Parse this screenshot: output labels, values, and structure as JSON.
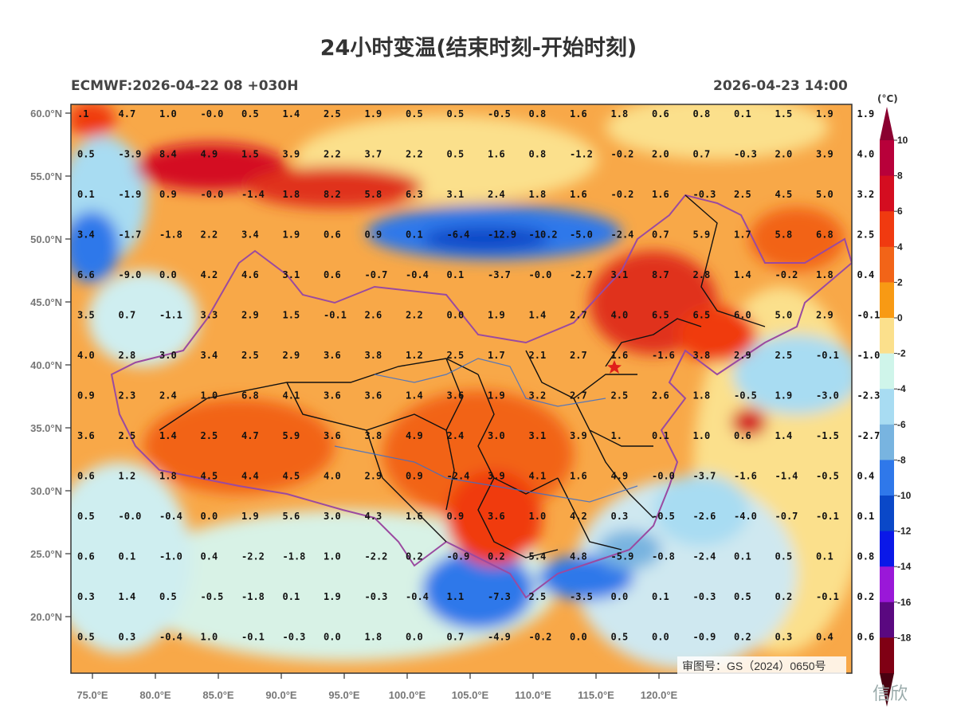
{
  "title": "24小时变温(结束时刻-开始时刻)",
  "subtitle_left": "ECMWF:2026-04-22 08 +030H",
  "subtitle_right": "2026-04-23 14:00",
  "approval_number": "审图号：GS（2024）0650号",
  "watermark_text": "信欣",
  "colorbar": {
    "unit": "(°C)",
    "labels": [
      "10",
      "8",
      "6",
      "4",
      "2",
      "0",
      "-2",
      "-4",
      "-6",
      "-8",
      "-10",
      "-12",
      "-14",
      "-16",
      "-18"
    ],
    "colors": [
      "#b8003a",
      "#d40d20",
      "#f03a10",
      "#f26418",
      "#f89a14",
      "#fbe08c",
      "#cff5ea",
      "#a8dcf2",
      "#78b4e0",
      "#2f78ea",
      "#0a48c8",
      "#0a18e8",
      "#9a18d8",
      "#5a0880",
      "#800014"
    ]
  },
  "map": {
    "lat_labels": [
      "60.0°N",
      "55.0°N",
      "50.0°N",
      "45.0°N",
      "40.0°N",
      "35.0°N",
      "30.0°N",
      "25.0°N",
      "20.0°N"
    ],
    "lon_labels": [
      "75.0°E",
      "80.0°E",
      "85.0°E",
      "90.0°E",
      "95.0°E",
      "100.0°E",
      "105.0°E",
      "110.0°E",
      "115.0°E",
      "120.0°E"
    ],
    "capital_marker": "star",
    "value_rows": [
      [
        ".1",
        "4.7",
        "1.0",
        "-0.0",
        "0.5",
        "1.4",
        "2.5",
        "1.9",
        "0.5",
        "0.5",
        "-0.5",
        "0.8",
        "1.6",
        "1.8",
        "0.6",
        "0.8",
        "0.1",
        "1.5",
        "1.9",
        "1.9"
      ],
      [
        "0.5",
        "-3.9",
        "8.4",
        "4.9",
        "1.5",
        "3.9",
        "2.2",
        "3.7",
        "2.2",
        "0.5",
        "1.6",
        "0.8",
        "-1.2",
        "-0.2",
        "2.0",
        "0.7",
        "-0.3",
        "2.0",
        "3.9",
        "4.0"
      ],
      [
        "0.1",
        "-1.9",
        "0.9",
        "-0.0",
        "-1.4",
        "1.8",
        "8.2",
        "5.8",
        "6.3",
        "3.1",
        "2.4",
        "1.8",
        "1.6",
        "-0.2",
        "1.6",
        "-0.3",
        "2.5",
        "4.5",
        "5.0",
        "3.2"
      ],
      [
        "3.4",
        "-1.7",
        "-1.8",
        "2.2",
        "3.4",
        "1.9",
        "0.6",
        "0.9",
        "0.1",
        "-6.4",
        "-12.9",
        "-10.2",
        "-5.0",
        "-2.4",
        "0.7",
        "5.9",
        "1.7",
        "5.8",
        "6.8",
        "2.5"
      ],
      [
        "6.6",
        "-9.0",
        "0.0",
        "4.2",
        "4.6",
        "3.1",
        "0.6",
        "-0.7",
        "-0.4",
        "0.1",
        "-3.7",
        "-0.0",
        "-2.7",
        "3.1",
        "8.7",
        "2.8",
        "1.4",
        "-0.2",
        "1.8",
        "0.4"
      ],
      [
        "3.5",
        "0.7",
        "-1.1",
        "3.3",
        "2.9",
        "1.5",
        "-0.1",
        "2.6",
        "2.2",
        "0.0",
        "1.9",
        "1.4",
        "2.7",
        "4.0",
        "6.5",
        "6.5",
        "6.0",
        "5.0",
        "2.9",
        "-0.1"
      ],
      [
        "4.0",
        "2.8",
        "3.0",
        "3.4",
        "2.5",
        "2.9",
        "3.6",
        "3.8",
        "1.2",
        "2.5",
        "1.7",
        "2.1",
        "2.7",
        "1.6",
        "-1.6",
        "3.8",
        "2.9",
        "2.5",
        "-0.1",
        "-1.0"
      ],
      [
        "0.9",
        "2.3",
        "2.4",
        "1.0",
        "6.8",
        "4.1",
        "3.6",
        "3.6",
        "1.4",
        "3.6",
        "1.9",
        "3.2",
        "2.7",
        "2.5",
        "2.6",
        "1.8",
        "-0.5",
        "1.9",
        "-3.0",
        "-2.3"
      ],
      [
        "3.6",
        "2.5",
        "1.4",
        "2.5",
        "4.7",
        "5.9",
        "3.6",
        "3.8",
        "4.9",
        "2.4",
        "3.0",
        "3.1",
        "3.9",
        "1.",
        "0.1",
        "1.0",
        "0.6",
        "1.4",
        "-1.5",
        "-2.7"
      ],
      [
        "0.6",
        "1.2",
        "1.8",
        "4.5",
        "4.4",
        "4.5",
        "4.0",
        "2.9",
        "0.9",
        "-2.4",
        "3.9",
        "4.1",
        "1.6",
        "4.9",
        "-0.0",
        "-3.7",
        "-1.6",
        "-1.4",
        "-0.5",
        "0.4"
      ],
      [
        "0.5",
        "-0.0",
        "-0.4",
        "0.0",
        "1.9",
        "5.6",
        "3.0",
        "4.3",
        "1.6",
        "0.9",
        "3.6",
        "1.0",
        "4.2",
        "0.3",
        "-0.5",
        "-2.6",
        "-4.0",
        "-0.7",
        "-0.1",
        "0.1"
      ],
      [
        "0.6",
        "0.1",
        "-1.0",
        "0.4",
        "-2.2",
        "-1.8",
        "1.0",
        "-2.2",
        "0.2",
        "-0.9",
        "0.2",
        "5.4",
        "4.8",
        "-5.9",
        "-0.8",
        "-2.4",
        "0.1",
        "0.5",
        "0.1",
        "0.8"
      ],
      [
        "0.3",
        "1.4",
        "0.5",
        "-0.5",
        "-1.8",
        "0.1",
        "1.9",
        "-0.3",
        "-0.4",
        "1.1",
        "-7.3",
        "2.5",
        "-3.5",
        "0.0",
        "0.1",
        "-0.3",
        "0.5",
        "0.2",
        "-0.1",
        "0.2"
      ],
      [
        "0.5",
        "0.3",
        "-0.4",
        "1.0",
        "-0.1",
        "-0.3",
        "0.0",
        "1.8",
        "0.0",
        "0.7",
        "-4.9",
        "-0.2",
        "0.0",
        "0.5",
        "0.0",
        "-0.9",
        "0.2",
        "0.3",
        "0.4",
        "0.6"
      ]
    ]
  }
}
